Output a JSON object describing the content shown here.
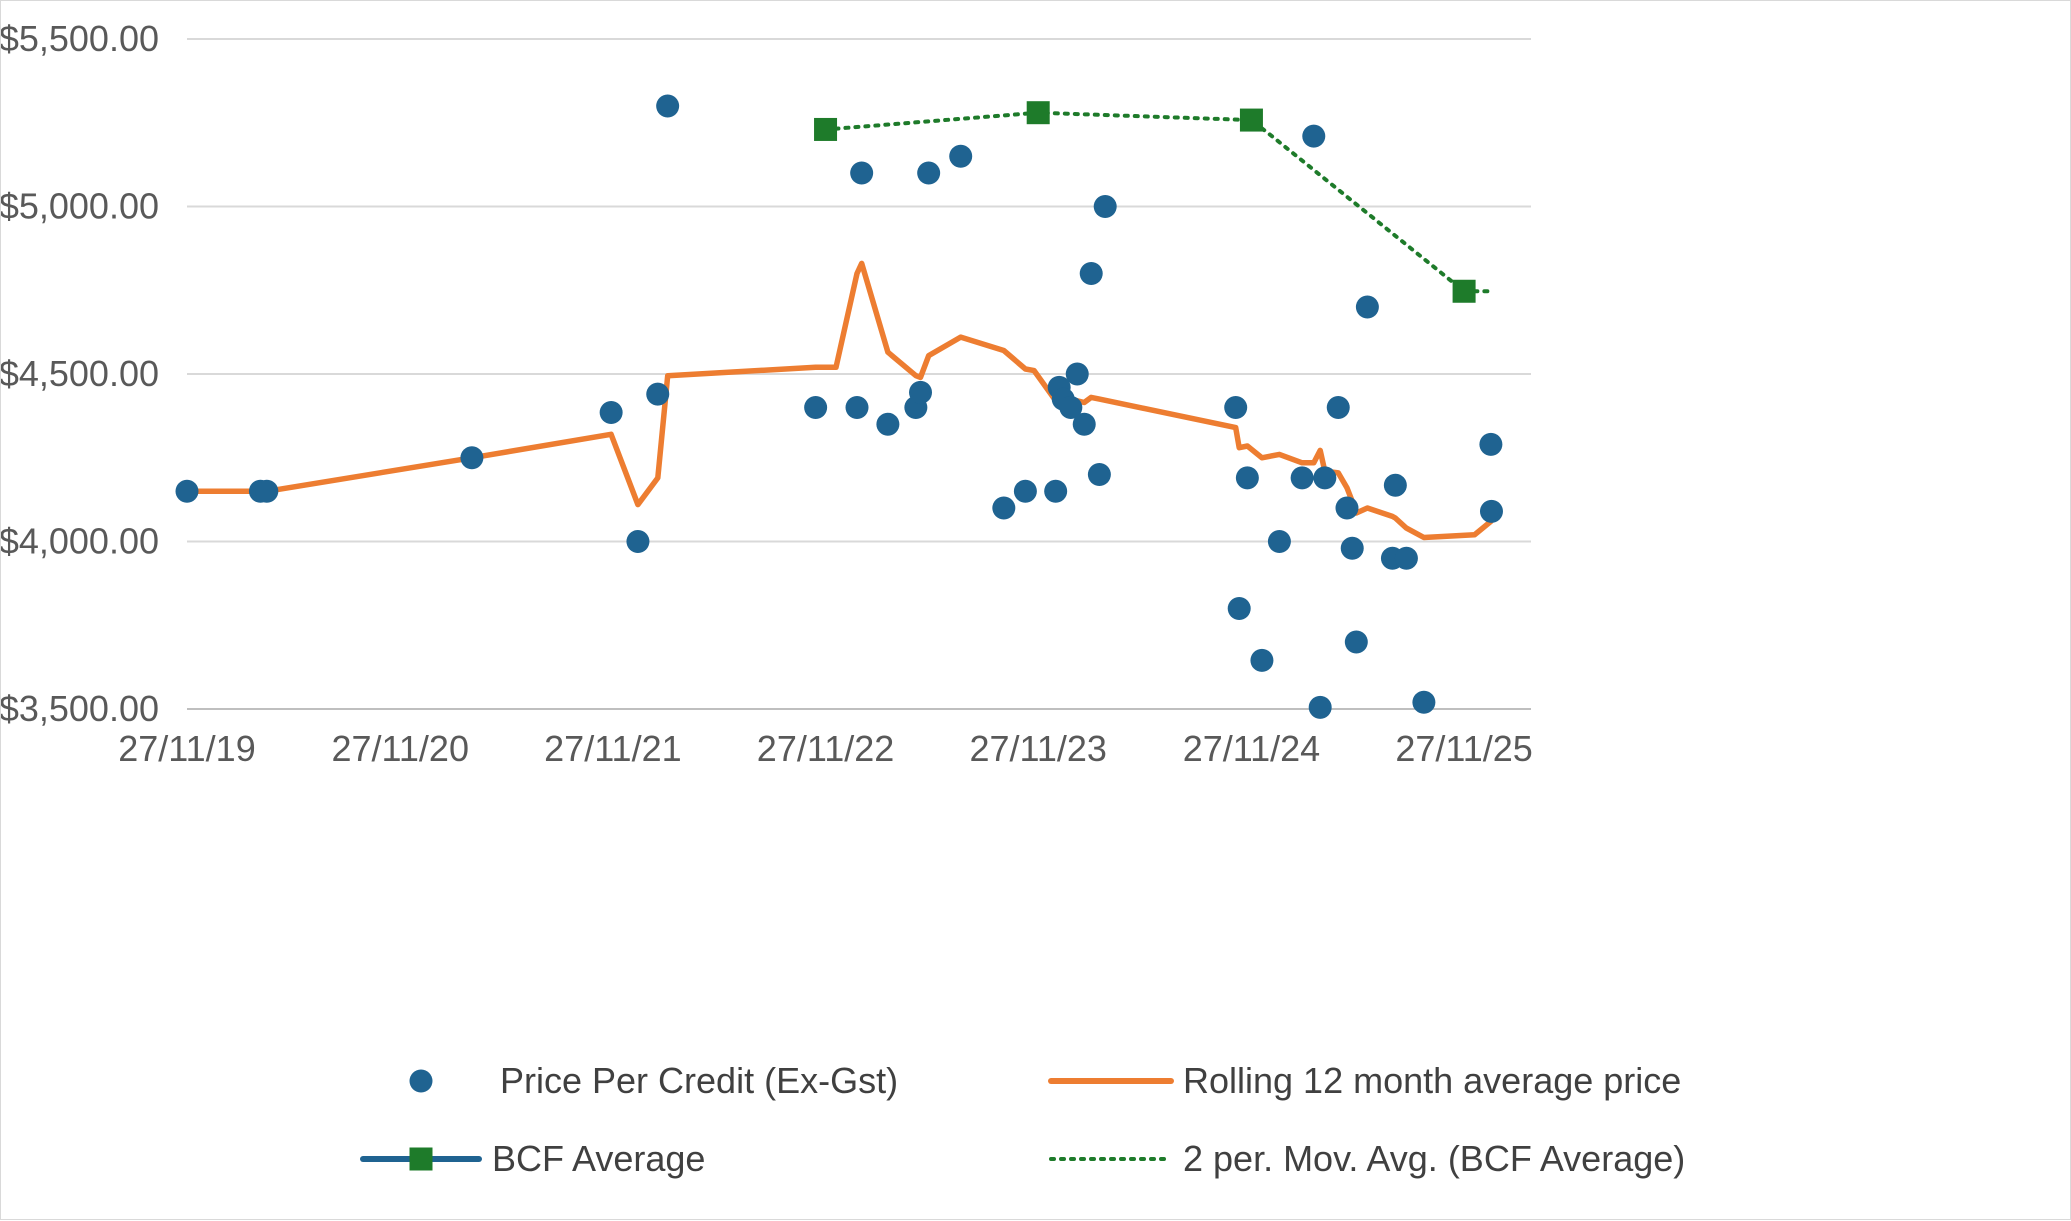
{
  "chart_data": {
    "type": "scatter",
    "title": "",
    "xlabel": "",
    "ylabel": "",
    "x_axis_type": "date",
    "xlim": [
      "2019-11-27",
      "2025-12-31"
    ],
    "ylim": [
      3500,
      5500
    ],
    "y_ticks": [
      3500,
      4000,
      4500,
      5000,
      5500
    ],
    "y_tick_labels": [
      "$3,500.00",
      "$4,000.00",
      "$4,500.00",
      "$5,000.00",
      "$5,500.00"
    ],
    "x_ticks": [
      "2019-11-27",
      "2020-11-27",
      "2021-11-27",
      "2022-11-27",
      "2023-11-27",
      "2024-11-27",
      "2025-11-27"
    ],
    "x_tick_labels": [
      "27/11/19",
      "27/11/20",
      "27/11/21",
      "27/11/22",
      "27/11/23",
      "27/11/24",
      "27/11/25"
    ],
    "grid": "horizontal",
    "legend_position": "bottom",
    "colors": {
      "points": "#1f6391",
      "rolling": "#ed7d31",
      "bcf": "#1e7b2a",
      "bcf_line": "#1f6391",
      "moving_avg": "#1e7b2a",
      "gridline": "#d9d9d9",
      "axis": "#bfbfbf",
      "text": "#595959"
    },
    "series": [
      {
        "name": "Price Per Credit (Ex-Gst)",
        "type": "scatter",
        "marker": "circle",
        "x": [
          "2019-11-27",
          "2020-04-01",
          "2020-04-12",
          "2021-03-30",
          "2021-11-24",
          "2022-01-09",
          "2022-02-12",
          "2022-03-01",
          "2022-11-10",
          "2023-01-20",
          "2023-01-28",
          "2023-03-14",
          "2023-05-01",
          "2023-05-09",
          "2023-05-23",
          "2023-07-17",
          "2023-09-29",
          "2023-11-05",
          "2023-12-27",
          "2024-01-02",
          "2024-01-09",
          "2024-01-22",
          "2024-02-02",
          "2024-02-14",
          "2024-02-26",
          "2024-03-11",
          "2024-03-21",
          "2024-10-31",
          "2024-11-06",
          "2024-11-20",
          "2024-12-15",
          "2025-01-14",
          "2025-02-22",
          "2025-03-14",
          "2025-03-25",
          "2025-04-02",
          "2025-04-25",
          "2025-05-10",
          "2025-05-19",
          "2025-05-26",
          "2025-06-14",
          "2025-07-27",
          "2025-08-01",
          "2025-08-20",
          "2025-09-19",
          "2026-01-12",
          "2026-01-13"
        ],
        "y": [
          4150,
          4150,
          4150,
          4250,
          4385,
          4000,
          4440,
          5300,
          4400,
          4400,
          5100,
          4350,
          4400,
          4445,
          5100,
          5150,
          4100,
          4150,
          4150,
          4460,
          4425,
          4400,
          4500,
          4350,
          4800,
          4200,
          5000,
          4400,
          3800,
          4190,
          3645,
          4000,
          4190,
          5210,
          3505,
          4190,
          4400,
          4100,
          3980,
          3700,
          4700,
          3950,
          4168,
          3950,
          3520,
          4290,
          4090
        ]
      },
      {
        "name": "Rolling 12 month average price",
        "type": "line",
        "x": [
          "2019-11-27",
          "2020-04-01",
          "2020-04-12",
          "2021-03-30",
          "2021-11-24",
          "2022-01-09",
          "2022-02-12",
          "2022-03-01",
          "2022-11-10",
          "2022-12-15",
          "2023-01-20",
          "2023-01-28",
          "2023-03-14",
          "2023-05-01",
          "2023-05-09",
          "2023-05-23",
          "2023-07-17",
          "2023-09-29",
          "2023-11-05",
          "2023-11-20",
          "2023-12-27",
          "2024-01-02",
          "2024-01-09",
          "2024-01-22",
          "2024-02-02",
          "2024-02-14",
          "2024-02-26",
          "2024-03-11",
          "2024-10-31",
          "2024-11-06",
          "2024-11-20",
          "2024-12-15",
          "2025-01-14",
          "2025-02-22",
          "2025-03-14",
          "2025-03-25",
          "2025-04-02",
          "2025-04-25",
          "2025-05-10",
          "2025-05-19",
          "2025-05-26",
          "2025-06-14",
          "2025-07-27",
          "2025-08-01",
          "2025-08-20",
          "2025-09-19",
          "2025-12-15",
          "2026-01-12"
        ],
        "y": [
          4150,
          4150,
          4150,
          4250,
          4320,
          4110,
          4190,
          4495,
          4520,
          4520,
          4800,
          4830,
          4565,
          4495,
          4490,
          4555,
          4610,
          4570,
          4515,
          4510,
          4420,
          4415,
          4415,
          4420,
          4420,
          4415,
          4430,
          4425,
          4340,
          4280,
          4285,
          4250,
          4260,
          4235,
          4235,
          4272,
          4210,
          4205,
          4160,
          4120,
          4085,
          4100,
          4075,
          4070,
          4040,
          4012,
          4020,
          4060
        ]
      },
      {
        "name": "BCF Average",
        "type": "line-markers",
        "marker": "square",
        "x": [
          "2022-11-27",
          "2023-11-27",
          "2024-11-27",
          "2025-11-27"
        ],
        "y": [
          5230,
          5280,
          5258,
          4747
        ]
      },
      {
        "name": "2 per. Mov. Avg. (BCF Average)",
        "type": "dotted-line",
        "x": [
          "2022-11-27",
          "2023-11-27",
          "2024-11-27",
          "2025-01-01",
          "2025-11-27",
          "2026-01-12"
        ],
        "y": [
          5230,
          5280,
          5258,
          5210,
          4747,
          4747
        ]
      }
    ]
  }
}
